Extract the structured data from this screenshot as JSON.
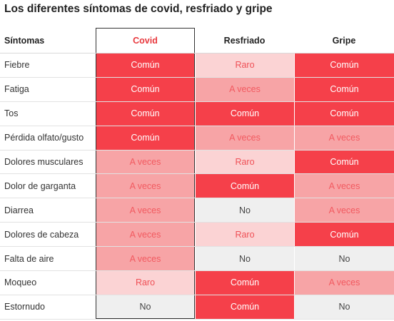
{
  "title": "Los diferentes síntomas de covid, resfriado y gripe",
  "headers": {
    "label": "Síntomas",
    "columns": [
      "Covid",
      "Resfriado",
      "Gripe"
    ]
  },
  "colors": {
    "comun": "#f5404a",
    "a_veces": "#f7a4a6",
    "raro": "#fbd3d4",
    "no": "#efefef",
    "covid_header_text": "#e8383d"
  },
  "rows": [
    {
      "label": "Fiebre",
      "values": [
        "Común",
        "Raro",
        "Común"
      ]
    },
    {
      "label": "Fatiga",
      "values": [
        "Común",
        "A veces",
        "Común"
      ]
    },
    {
      "label": "Tos",
      "values": [
        "Común",
        "Común",
        "Común"
      ]
    },
    {
      "label": "Pérdida olfato/gusto",
      "values": [
        "Común",
        "A veces",
        "A veces"
      ]
    },
    {
      "label": "Dolores musculares",
      "values": [
        "A veces",
        "Raro",
        "Común"
      ]
    },
    {
      "label": "Dolor de garganta",
      "values": [
        "A veces",
        "Común",
        "A veces"
      ]
    },
    {
      "label": "Diarrea",
      "values": [
        "A veces",
        "No",
        "A veces"
      ]
    },
    {
      "label": "Dolores de cabeza",
      "values": [
        "A veces",
        "Raro",
        "Común"
      ]
    },
    {
      "label": "Falta de aire",
      "values": [
        "A veces",
        "No",
        "No"
      ]
    },
    {
      "label": "Moqueo",
      "values": [
        "Raro",
        "Común",
        "A veces"
      ]
    },
    {
      "label": "Estornudo",
      "values": [
        "No",
        "Común",
        "No"
      ]
    }
  ]
}
